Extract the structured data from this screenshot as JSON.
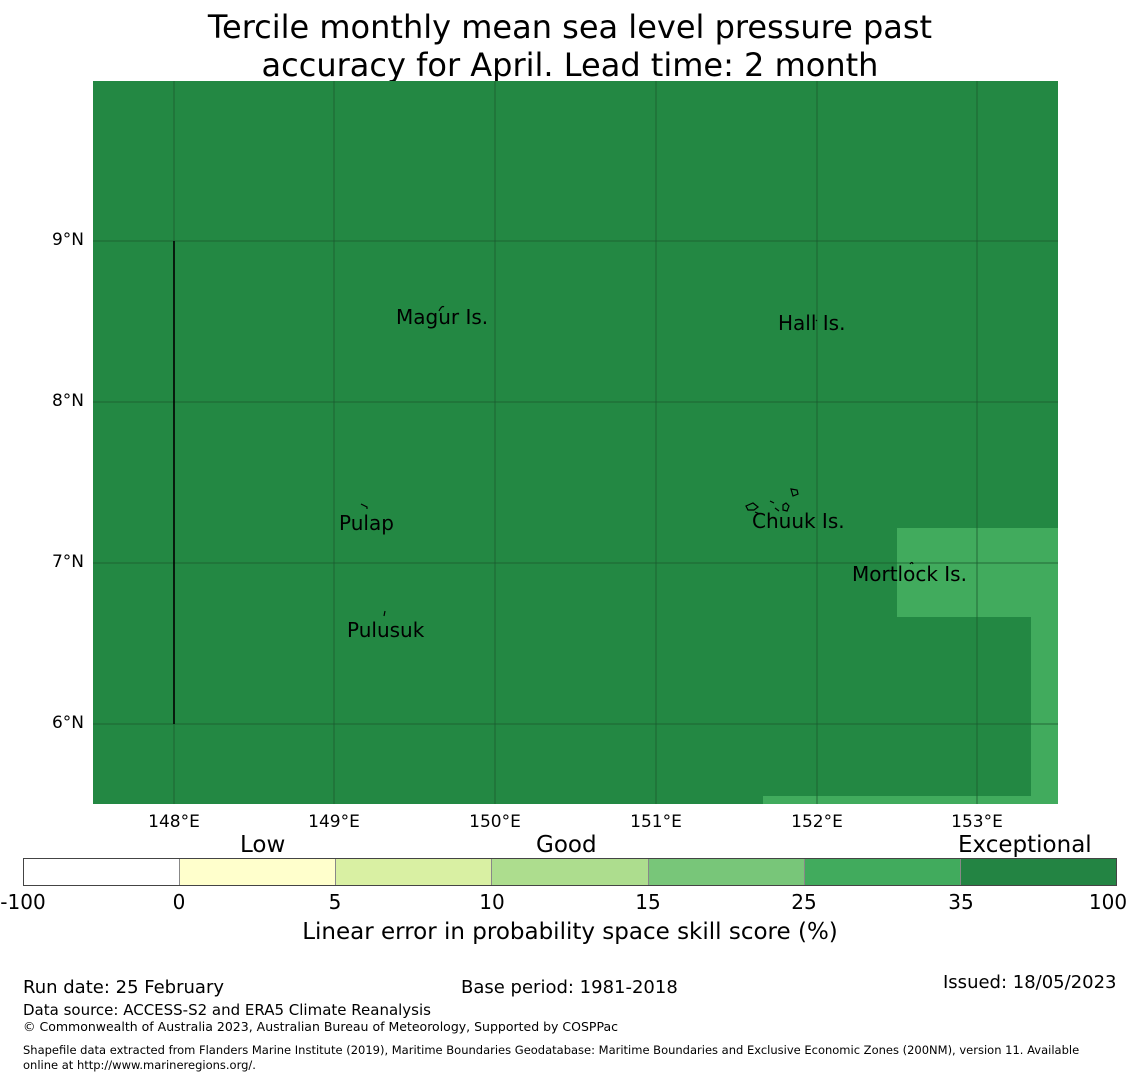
{
  "title": {
    "line1": "Tercile monthly mean sea level pressure past",
    "line2": "accuracy for April. Lead time: 2 month"
  },
  "map": {
    "colors": {
      "base": "#238843",
      "light_patch": "#41ab5d",
      "grid": "#1a5a2e",
      "coast": "#000000"
    },
    "lat_ticks": [
      "9°N",
      "8°N",
      "7°N",
      "6°N"
    ],
    "lon_ticks": [
      "148°E",
      "149°E",
      "150°E",
      "151°E",
      "152°E",
      "153°E"
    ],
    "places": [
      {
        "name": "Magur Is."
      },
      {
        "name": "Hall Is."
      },
      {
        "name": "Pulap"
      },
      {
        "name": "Chuuk Is."
      },
      {
        "name": "Mortlock Is."
      },
      {
        "name": "Pulusuk"
      }
    ]
  },
  "colorbar": {
    "categories": [
      "Low",
      "Good",
      "Exceptional"
    ],
    "colors": [
      "#ffffff",
      "#ffffcc",
      "#d9f0a3",
      "#addd8e",
      "#78c679",
      "#41ab5d",
      "#238443"
    ],
    "ticks": [
      "-100",
      "0",
      "5",
      "10",
      "15",
      "25",
      "35",
      "100"
    ],
    "label": "Linear error in probability space skill score (%)"
  },
  "footer": {
    "run_date": "Run date: 25 February",
    "base_period": "Base period: 1981-2018",
    "issued": "Issued: 18/05/2023",
    "data_source": "Data source: ACCESS-S2 and ERA5 Climate Reanalysis",
    "copyright": "© Commonwealth of Australia 2023, Australian Bureau of Meteorology, Supported by COSPPac",
    "shapefile_line1": "Shapefile data extracted from Flanders Marine Institute (2019), Maritime Boundaries Geodatabase: Maritime Boundaries and Exclusive Economic Zones (200NM), version 11. Available",
    "shapefile_line2": "online at http://www.marineregions.org/."
  }
}
